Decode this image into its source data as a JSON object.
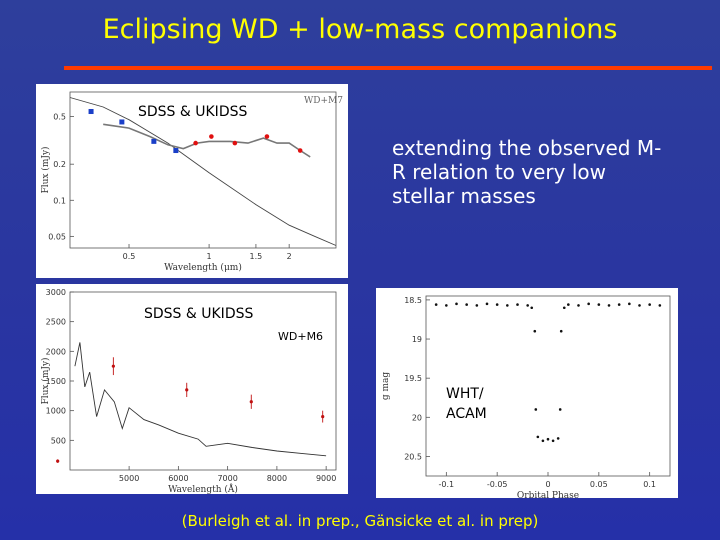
{
  "slide": {
    "title": "Eclipsing WD + low-mass companions",
    "note": "extending the observed M-R relation to very low stellar masses",
    "citation": "(Burleigh et al. in prep., Gänsicke et al. in prep)",
    "colors": {
      "background": "#2a36a0",
      "title": "#ffff00",
      "rule": "#ff3a00",
      "note": "#ffffff"
    }
  },
  "panels": {
    "sed": {
      "label": "SDSS & UKIDSS",
      "tag": "WD+M7"
    },
    "spectrum": {
      "label": "SDSS & UKIDSS",
      "tag": "WD+M6"
    },
    "lightcurve": {
      "label": "WHT/ ACAM"
    }
  },
  "chart_data": [
    {
      "type": "scatter",
      "xlabel": "Wavelength (μm)",
      "ylabel": "Flux (mJy)",
      "xscale": "log",
      "yscale": "log",
      "xlim": [
        0.3,
        3.0
      ],
      "ylim": [
        0.04,
        0.8
      ],
      "xticks": [
        0.5,
        1,
        1.5,
        2
      ],
      "xticklabels": [
        "0.5",
        "1",
        "1.5",
        "2"
      ],
      "yticks": [
        0.05,
        0.1,
        0.2,
        0.5
      ],
      "yticklabels": [
        "0.05",
        "0.1",
        "0.2",
        "0.5"
      ],
      "series": [
        {
          "color": "#1a3fc8",
          "x": [
            0.36,
            0.47,
            0.62,
            0.75
          ],
          "y": [
            0.55,
            0.45,
            0.31,
            0.26
          ]
        },
        {
          "color": "#e01010",
          "x": [
            0.89,
            1.02,
            1.25,
            1.65,
            2.2
          ],
          "y": [
            0.3,
            0.34,
            0.3,
            0.34,
            0.26
          ]
        }
      ],
      "model_curve": {
        "x": [
          0.3,
          0.4,
          0.5,
          0.7,
          1.0,
          1.5,
          2.0,
          2.5,
          3.0
        ],
        "y": [
          0.72,
          0.6,
          0.47,
          0.3,
          0.17,
          0.092,
          0.062,
          0.05,
          0.042
        ]
      },
      "composite_spectrum": {
        "x": [
          0.4,
          0.5,
          0.6,
          0.7,
          0.8,
          0.9,
          1.0,
          1.2,
          1.4,
          1.6,
          1.8,
          2.0,
          2.2,
          2.4
        ],
        "y": [
          0.43,
          0.4,
          0.34,
          0.29,
          0.27,
          0.3,
          0.31,
          0.31,
          0.3,
          0.33,
          0.3,
          0.3,
          0.26,
          0.23
        ]
      }
    },
    {
      "type": "line",
      "xlabel": "Wavelength (Å)",
      "ylabel": "Flux (mJy)",
      "xlim": [
        3800,
        9200
      ],
      "ylim": [
        0,
        3000
      ],
      "xticks": [
        5000,
        6000,
        7000,
        8000,
        9000
      ],
      "xticklabels": [
        "5000",
        "6000",
        "7000",
        "8000",
        "9000"
      ],
      "yticks": [
        500,
        1000,
        1500,
        2000,
        2500,
        3000
      ],
      "yticklabels": [
        "500",
        "1000",
        "1500",
        "2000",
        "2500",
        "3000"
      ],
      "spectrum": {
        "x": [
          3900,
          4000,
          4100,
          4200,
          4340,
          4500,
          4700,
          4861,
          5000,
          5300,
          5600,
          6000,
          6400,
          6563,
          7000,
          7500,
          8000,
          8500,
          9000
        ],
        "y": [
          1750,
          2150,
          1400,
          1650,
          900,
          1350,
          1150,
          700,
          1050,
          850,
          760,
          620,
          520,
          400,
          450,
          380,
          320,
          280,
          240
        ]
      },
      "photometry": {
        "x": [
          3550,
          4680,
          6170,
          7480,
          8930
        ],
        "y": [
          150,
          1750,
          1350,
          1150,
          900
        ],
        "yerr": [
          30,
          150,
          120,
          120,
          100
        ]
      }
    },
    {
      "type": "scatter",
      "xlabel": "Orbital Phase",
      "ylabel": "g mag",
      "yinverted": true,
      "xlim": [
        -0.12,
        0.12
      ],
      "ylim": [
        18.45,
        20.75
      ],
      "xticks": [
        -0.1,
        -0.05,
        0,
        0.05,
        0.1
      ],
      "xticklabels": [
        "-0.1",
        "-0.05",
        "0",
        "0.05",
        "0.1"
      ],
      "yticks": [
        18.5,
        19,
        19.5,
        20,
        20.5
      ],
      "yticklabels": [
        "18.5",
        "19",
        "19.5",
        "20",
        "20.5"
      ],
      "series": [
        {
          "name": "",
          "x": [
            -0.11,
            -0.1,
            -0.09,
            -0.08,
            -0.07,
            -0.06,
            -0.05,
            -0.04,
            -0.03,
            -0.02,
            -0.016,
            -0.013,
            -0.012,
            -0.01,
            -0.005,
            0.0,
            0.005,
            0.01,
            0.012,
            0.013,
            0.016,
            0.02,
            0.03,
            0.04,
            0.05,
            0.06,
            0.07,
            0.08,
            0.09,
            0.1,
            0.11
          ],
          "y": [
            18.56,
            18.57,
            18.55,
            18.56,
            18.57,
            18.55,
            18.56,
            18.57,
            18.56,
            18.57,
            18.6,
            18.9,
            19.9,
            20.25,
            20.3,
            20.28,
            20.3,
            20.27,
            19.9,
            18.9,
            18.6,
            18.56,
            18.57,
            18.55,
            18.56,
            18.57,
            18.56,
            18.55,
            18.57,
            18.56,
            18.57
          ]
        }
      ]
    }
  ]
}
